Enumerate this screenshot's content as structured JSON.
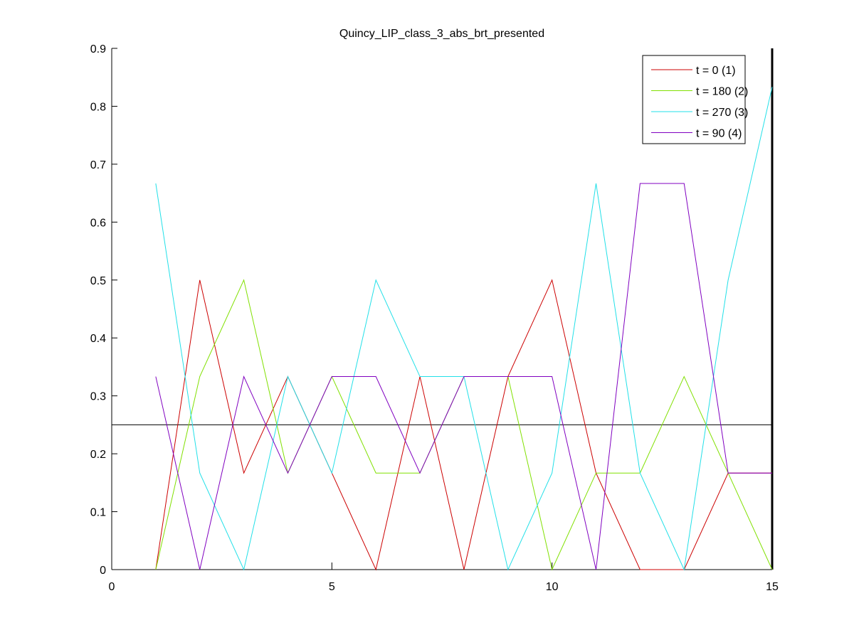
{
  "chart_data": {
    "type": "line",
    "title": "Quincy_LIP_class_3_abs_brt_presented",
    "xlabel": "",
    "ylabel": "",
    "xlim": [
      0,
      15
    ],
    "ylim": [
      0,
      0.9
    ],
    "x_ticks": [
      0,
      5,
      10,
      15
    ],
    "x_tick_labels": [
      "0",
      "5",
      "10",
      "15"
    ],
    "y_ticks": [
      0,
      0.1,
      0.2,
      0.3,
      0.4,
      0.5,
      0.6,
      0.7,
      0.8,
      0.9
    ],
    "y_tick_labels": [
      "0",
      "0.1",
      "0.2",
      "0.3",
      "0.4",
      "0.5",
      "0.6",
      "0.7",
      "0.8",
      "0.9"
    ],
    "grid": false,
    "legend_position": "top-right",
    "x": [
      1,
      2,
      3,
      4,
      5,
      6,
      7,
      8,
      9,
      10,
      11,
      12,
      13,
      14,
      15
    ],
    "series": [
      {
        "name": "t = 0 (1)",
        "color": "#cc0000",
        "values": [
          0,
          0.5,
          0.1667,
          0.3333,
          0.1667,
          0,
          0.3333,
          0,
          0.3333,
          0.5,
          0.1667,
          0,
          0,
          0.1667,
          0.1667
        ]
      },
      {
        "name": "t = 180 (2)",
        "color": "#80e000",
        "values": [
          0,
          0.3333,
          0.5,
          0.1667,
          0.3333,
          0.1667,
          0.1667,
          0.3333,
          0.3333,
          0,
          0.1667,
          0.1667,
          0.3333,
          0.1667,
          0
        ]
      },
      {
        "name": "t = 270 (3)",
        "color": "#22e0e8",
        "values": [
          0.6667,
          0.1667,
          0,
          0.3333,
          0.1667,
          0.5,
          0.3333,
          0.3333,
          0,
          0.1667,
          0.6667,
          0.1667,
          0,
          0.5,
          0.8333
        ]
      },
      {
        "name": "t = 90 (4)",
        "color": "#8000c0",
        "values": [
          0.3333,
          0,
          0.3333,
          0.1667,
          0.3333,
          0.3333,
          0.1667,
          0.3333,
          0.3333,
          0.3333,
          0,
          0.6667,
          0.6667,
          0.1667,
          0.1667
        ]
      }
    ],
    "reference_line": {
      "y": 0.25,
      "color": "#000000"
    },
    "vertical_marker": {
      "x": 15,
      "color": "#000000"
    }
  }
}
